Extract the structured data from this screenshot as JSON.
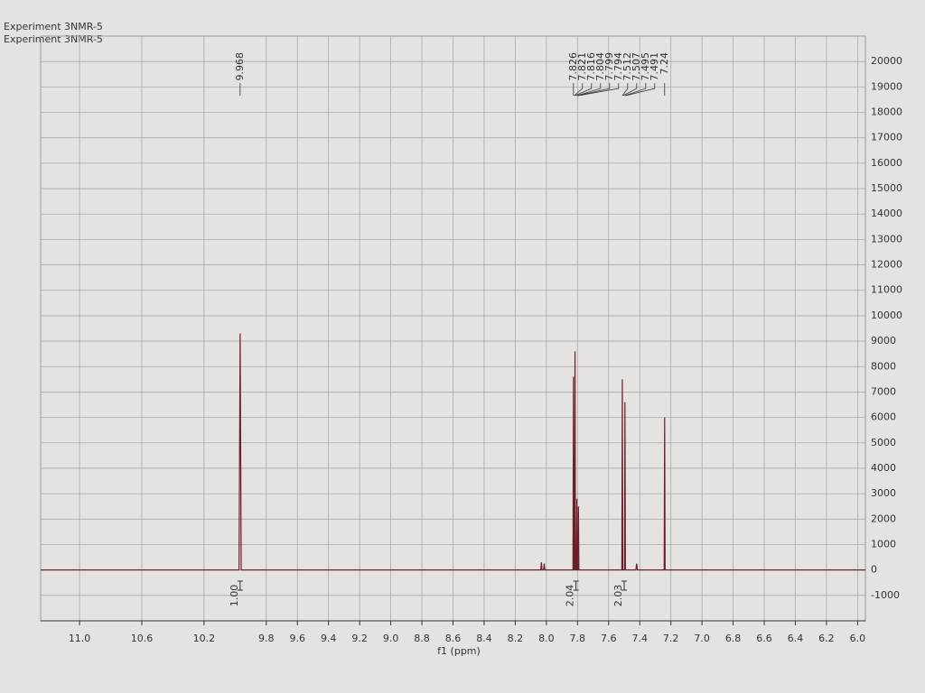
{
  "chart_data": {
    "type": "line",
    "title": "Experiment 3NMR-5",
    "subtitle": "Experiment 3NMR-5",
    "x_label": "f1 (ppm)",
    "reverse_x": true,
    "xlim": [
      11.25,
      5.95
    ],
    "xticks": [
      {
        "value": 11,
        "label": "11.0"
      },
      10.6,
      10.2,
      9.8,
      9.6,
      9.4,
      9.2,
      {
        "value": 9,
        "label": "9.0"
      },
      8.8,
      8.6,
      8.4,
      8.2,
      {
        "value": 8,
        "label": "8.0"
      },
      7.8,
      7.6,
      7.4,
      7.2,
      {
        "value": 7,
        "label": "7.0"
      },
      6.8,
      6.6,
      6.4,
      6.2,
      {
        "value": 6,
        "label": "6.0"
      }
    ],
    "ylim": [
      -2000,
      21000
    ],
    "yticks": [
      -1000,
      0,
      1000,
      2000,
      3000,
      4000,
      5000,
      6000,
      7000,
      8000,
      9000,
      10000,
      11000,
      12000,
      13000,
      14000,
      15000,
      16000,
      17000,
      18000,
      19000,
      20000
    ],
    "grid": true,
    "series": [
      {
        "color": "#6b1f2a",
        "x": [
          11.25,
          9.975,
          9.968,
          9.961,
          8.036,
          8.032,
          8.028,
          8.018,
          8.014,
          8.01,
          7.829,
          7.826,
          7.823,
          7.819,
          7.816,
          7.813,
          7.807,
          7.804,
          7.801,
          7.797,
          7.794,
          7.791,
          7.515,
          7.512,
          7.509,
          7.498,
          7.495,
          7.492,
          7.425,
          7.42,
          7.415,
          7.243,
          7.24,
          7.237,
          5.95
        ],
        "values": [
          0,
          0,
          9300,
          0,
          0,
          300,
          0,
          0,
          250,
          0,
          0,
          7600,
          0,
          0,
          8600,
          0,
          0,
          2800,
          0,
          0,
          2500,
          0,
          0,
          7500,
          0,
          0,
          6600,
          0,
          0,
          250,
          0,
          0,
          6000,
          0,
          0
        ]
      }
    ],
    "peak_labels": [
      9.968,
      7.826,
      7.821,
      7.816,
      7.804,
      7.799,
      7.794,
      7.512,
      7.507,
      7.495,
      7.491,
      7.24
    ],
    "integrals": {
      "x": [
        9.968,
        7.81,
        7.5
      ],
      "values": [
        1.0,
        2.04,
        2.03
      ],
      "value_labels": [
        "1.00",
        "2.04",
        "2.03"
      ]
    }
  }
}
